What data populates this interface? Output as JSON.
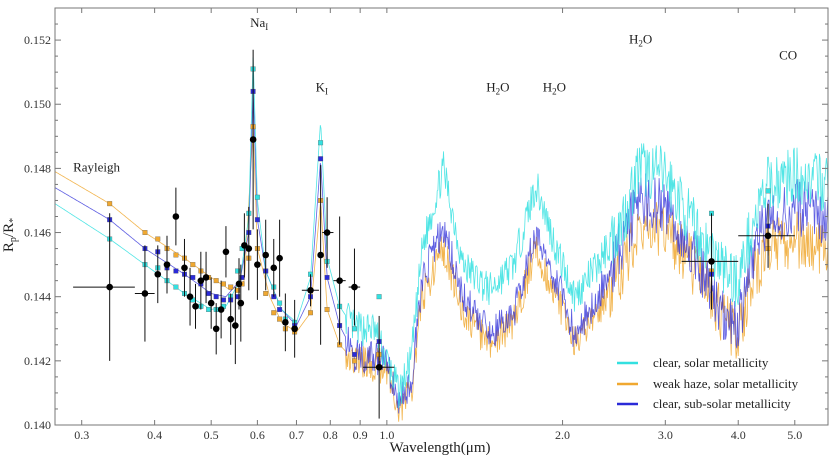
{
  "chart_data": {
    "type": "line",
    "title": "",
    "xlabel": "Wavelength(μm)",
    "ylabel_main": "R",
    "ylabel_sub1": "p",
    "ylabel_mid": "/R",
    "ylabel_sub2": "*",
    "xscale": "log",
    "xlim": [
      0.27,
      5.7
    ],
    "ylim": [
      0.14,
      0.153
    ],
    "xticks": [
      0.3,
      0.4,
      0.5,
      0.6,
      0.7,
      0.8,
      0.9,
      1.0,
      2.0,
      3.0,
      4.0,
      5.0
    ],
    "xtick_labels": [
      "0.3",
      "0.4",
      "0.5",
      "0.6",
      "0.7",
      "0.8",
      "0.9",
      "1.0",
      "2.0",
      "3.0",
      "4.0",
      "5.0"
    ],
    "yticks": [
      0.14,
      0.142,
      0.144,
      0.146,
      0.148,
      0.15,
      0.152
    ],
    "ytick_labels": [
      "0.140",
      "0.142",
      "0.144",
      "0.146",
      "0.148",
      "0.150",
      "0.152"
    ],
    "annotations": [
      {
        "text": "Rayleigh",
        "sub": "",
        "x": 0.29,
        "y": 0.1479
      },
      {
        "text": "Na",
        "sub": "I",
        "x": 0.583,
        "y": 0.1524
      },
      {
        "text": "K",
        "sub": "I",
        "x": 0.755,
        "y": 0.1504
      },
      {
        "text": "H",
        "sub": "2",
        "tail": "O",
        "x": 1.48,
        "y": 0.1504
      },
      {
        "text": "H",
        "sub": "2",
        "tail": "O",
        "x": 1.85,
        "y": 0.1504
      },
      {
        "text": "H",
        "sub": "2",
        "tail": "O",
        "x": 2.6,
        "y": 0.1519
      },
      {
        "text": "CO",
        "sub": "",
        "x": 4.7,
        "y": 0.1514
      }
    ],
    "legend": {
      "placement": "bottom-right",
      "entries": [
        "clear, solar metallicity",
        "weak haze, solar metallicity",
        "clear, sub-solar metallicity"
      ]
    },
    "series": [
      {
        "name": "clear, solar metallicity",
        "color": "#33e0e0",
        "model_x": [
          0.27,
          0.335,
          0.385,
          0.45,
          0.5,
          0.53,
          0.56,
          0.58,
          0.59,
          0.6,
          0.62,
          0.66,
          0.7,
          0.74,
          0.77,
          0.79,
          0.83,
          0.88,
          0.95,
          1.0,
          1.05,
          1.1,
          1.15,
          1.25,
          1.35,
          1.5,
          1.65,
          1.8,
          1.95,
          2.1,
          2.3,
          2.55,
          2.7,
          3.0,
          3.4,
          3.8,
          4.0,
          4.2,
          4.5,
          5.0,
          5.7
        ],
        "model_y": [
          0.1469,
          0.1458,
          0.145,
          0.1441,
          0.1436,
          0.1437,
          0.1445,
          0.1465,
          0.1515,
          0.147,
          0.1448,
          0.1436,
          0.1432,
          0.1446,
          0.1495,
          0.1452,
          0.1437,
          0.143,
          0.143,
          0.142,
          0.141,
          0.142,
          0.1455,
          0.148,
          0.145,
          0.1442,
          0.145,
          0.1475,
          0.1455,
          0.144,
          0.145,
          0.1465,
          0.148,
          0.1478,
          0.146,
          0.1448,
          0.1445,
          0.146,
          0.1475,
          0.1478,
          0.1475
        ],
        "binned_y": [
          0.1458,
          0.145,
          0.1449,
          0.1445,
          0.1443,
          0.1441,
          0.1439,
          0.1437,
          0.1436,
          0.1436,
          0.1437,
          0.144,
          0.1448,
          0.1455,
          0.1466,
          0.1511,
          0.1471,
          0.1448,
          0.1443,
          0.1438,
          0.1433,
          0.1432,
          0.1447,
          0.1488,
          0.1451,
          0.1437,
          0.143,
          0.144,
          0.1466,
          0.1473
        ]
      },
      {
        "name": "weak haze, solar metallicity",
        "color": "#f0a830",
        "model_x": [
          0.27,
          0.335,
          0.385,
          0.45,
          0.5,
          0.54,
          0.57,
          0.59,
          0.6,
          0.63,
          0.66,
          0.7,
          0.74,
          0.77,
          0.79,
          0.83,
          0.88,
          1.0,
          1.05,
          1.1,
          1.15,
          1.25,
          1.35,
          1.5,
          1.65,
          1.8,
          1.95,
          2.1,
          2.3,
          2.55,
          2.7,
          3.0,
          3.4,
          3.8,
          4.0,
          4.2,
          4.5,
          5.0,
          5.7
        ],
        "model_y": [
          0.1479,
          0.1469,
          0.146,
          0.1452,
          0.1446,
          0.1442,
          0.1445,
          0.1493,
          0.1455,
          0.144,
          0.1432,
          0.1429,
          0.1435,
          0.147,
          0.1436,
          0.1425,
          0.142,
          0.1418,
          0.1405,
          0.141,
          0.144,
          0.1455,
          0.1435,
          0.1425,
          0.1432,
          0.1455,
          0.144,
          0.1425,
          0.1435,
          0.145,
          0.1462,
          0.146,
          0.1448,
          0.1432,
          0.1428,
          0.1445,
          0.1455,
          0.1458,
          0.1455
        ],
        "binned_y": [
          0.1469,
          0.146,
          0.1458,
          0.1455,
          0.1453,
          0.1452,
          0.145,
          0.1448,
          0.1446,
          0.1445,
          0.1444,
          0.1443,
          0.1442,
          0.1444,
          0.1452,
          0.1493,
          0.1455,
          0.1441,
          0.1435,
          0.1433,
          0.143,
          0.1429,
          0.1435,
          0.147,
          0.1436,
          0.1425,
          0.142,
          0.1422,
          0.1448,
          0.1455
        ]
      },
      {
        "name": "clear, sub-solar metallicity",
        "color": "#2a2ad8",
        "model_x": [
          0.27,
          0.335,
          0.385,
          0.45,
          0.5,
          0.53,
          0.56,
          0.58,
          0.59,
          0.6,
          0.62,
          0.66,
          0.7,
          0.74,
          0.77,
          0.79,
          0.83,
          0.88,
          1.0,
          1.05,
          1.1,
          1.15,
          1.25,
          1.35,
          1.5,
          1.65,
          1.8,
          1.95,
          2.1,
          2.3,
          2.55,
          2.7,
          3.0,
          3.4,
          3.8,
          4.0,
          4.2,
          4.5,
          5.0,
          5.7
        ],
        "model_y": [
          0.1474,
          0.1464,
          0.1455,
          0.1447,
          0.1441,
          0.144,
          0.1445,
          0.146,
          0.1505,
          0.1464,
          0.1448,
          0.1436,
          0.1431,
          0.144,
          0.1483,
          0.1446,
          0.1431,
          0.1422,
          0.142,
          0.1407,
          0.1412,
          0.1445,
          0.1462,
          0.144,
          0.1428,
          0.1435,
          0.146,
          0.1445,
          0.1428,
          0.144,
          0.1458,
          0.147,
          0.1468,
          0.1452,
          0.1432,
          0.143,
          0.1452,
          0.1465,
          0.1468,
          0.1465
        ],
        "binned_y": [
          0.1464,
          0.1455,
          0.1454,
          0.1449,
          0.1448,
          0.1447,
          0.1446,
          0.1444,
          0.1441,
          0.144,
          0.1439,
          0.1439,
          0.144,
          0.1446,
          0.146,
          0.1504,
          0.1464,
          0.1448,
          0.144,
          0.1436,
          0.1432,
          0.1431,
          0.144,
          0.1483,
          0.1446,
          0.1431,
          0.1422,
          0.1426,
          0.1447,
          0.1462
        ]
      }
    ],
    "binned_x": [
      0.335,
      0.385,
      0.405,
      0.42,
      0.435,
      0.45,
      0.465,
      0.48,
      0.495,
      0.51,
      0.525,
      0.54,
      0.555,
      0.565,
      0.58,
      0.59,
      0.6,
      0.62,
      0.64,
      0.655,
      0.67,
      0.695,
      0.74,
      0.77,
      0.79,
      0.83,
      0.88,
      0.97,
      3.6,
      4.5
    ],
    "observations": [
      {
        "x": 0.335,
        "y": 0.1443,
        "yerr": 0.0023,
        "xlo": 0.29,
        "xhi": 0.37
      },
      {
        "x": 0.385,
        "y": 0.1441,
        "yerr": 0.0015,
        "xlo": 0.37,
        "xhi": 0.4
      },
      {
        "x": 0.405,
        "y": 0.1447,
        "yerr": 0.0009
      },
      {
        "x": 0.42,
        "y": 0.145,
        "yerr": 0.0009
      },
      {
        "x": 0.435,
        "y": 0.1465,
        "yerr": 0.0009
      },
      {
        "x": 0.45,
        "y": 0.1449,
        "yerr": 0.0009
      },
      {
        "x": 0.46,
        "y": 0.144,
        "yerr": 0.0009
      },
      {
        "x": 0.47,
        "y": 0.1437,
        "yerr": 0.0007
      },
      {
        "x": 0.48,
        "y": 0.1445,
        "yerr": 0.0009
      },
      {
        "x": 0.49,
        "y": 0.1446,
        "yerr": 0.0008
      },
      {
        "x": 0.5,
        "y": 0.1438,
        "yerr": 0.0008
      },
      {
        "x": 0.51,
        "y": 0.143,
        "yerr": 0.0008
      },
      {
        "x": 0.52,
        "y": 0.1436,
        "yerr": 0.0009
      },
      {
        "x": 0.53,
        "y": 0.1454,
        "yerr": 0.0008
      },
      {
        "x": 0.54,
        "y": 0.1433,
        "yerr": 0.0008
      },
      {
        "x": 0.55,
        "y": 0.1431,
        "yerr": 0.0012
      },
      {
        "x": 0.558,
        "y": 0.1444,
        "yerr": 0.0008
      },
      {
        "x": 0.562,
        "y": 0.1438,
        "yerr": 0.0012
      },
      {
        "x": 0.57,
        "y": 0.1456,
        "yerr": 0.001
      },
      {
        "x": 0.58,
        "y": 0.1455,
        "yerr": 0.0013
      },
      {
        "x": 0.59,
        "y": 0.1489,
        "yerr": 0.0028
      },
      {
        "x": 0.6,
        "y": 0.145,
        "yerr": 0.0011
      },
      {
        "x": 0.62,
        "y": 0.1453,
        "yerr": 0.0011
      },
      {
        "x": 0.64,
        "y": 0.1449,
        "yerr": 0.0009
      },
      {
        "x": 0.655,
        "y": 0.1452,
        "yerr": 0.0012
      },
      {
        "x": 0.67,
        "y": 0.1432,
        "yerr": 0.0009
      },
      {
        "x": 0.695,
        "y": 0.143,
        "yerr": 0.0009
      },
      {
        "x": 0.74,
        "y": 0.1442,
        "yerr": 0.0005,
        "xlo": 0.715,
        "xhi": 0.765
      },
      {
        "x": 0.77,
        "y": 0.1453,
        "yerr": 0.0028
      },
      {
        "x": 0.79,
        "y": 0.146,
        "yerr": 0.0011,
        "xlo": 0.775,
        "xhi": 0.81
      },
      {
        "x": 0.83,
        "y": 0.1445,
        "yerr": 0.002,
        "xlo": 0.81,
        "xhi": 0.85
      },
      {
        "x": 0.88,
        "y": 0.1443,
        "yerr": 0.0012,
        "xlo": 0.86,
        "xhi": 0.9
      },
      {
        "x": 0.97,
        "y": 0.1418,
        "yerr": 0.0016,
        "xlo": 0.91,
        "xhi": 1.03
      },
      {
        "x": 3.6,
        "y": 0.1451,
        "yerr": 0.0015,
        "xlo": 3.2,
        "xhi": 4.0
      },
      {
        "x": 4.5,
        "y": 0.1459,
        "yerr": 0.001,
        "xlo": 4.0,
        "xhi": 5.0
      }
    ]
  }
}
